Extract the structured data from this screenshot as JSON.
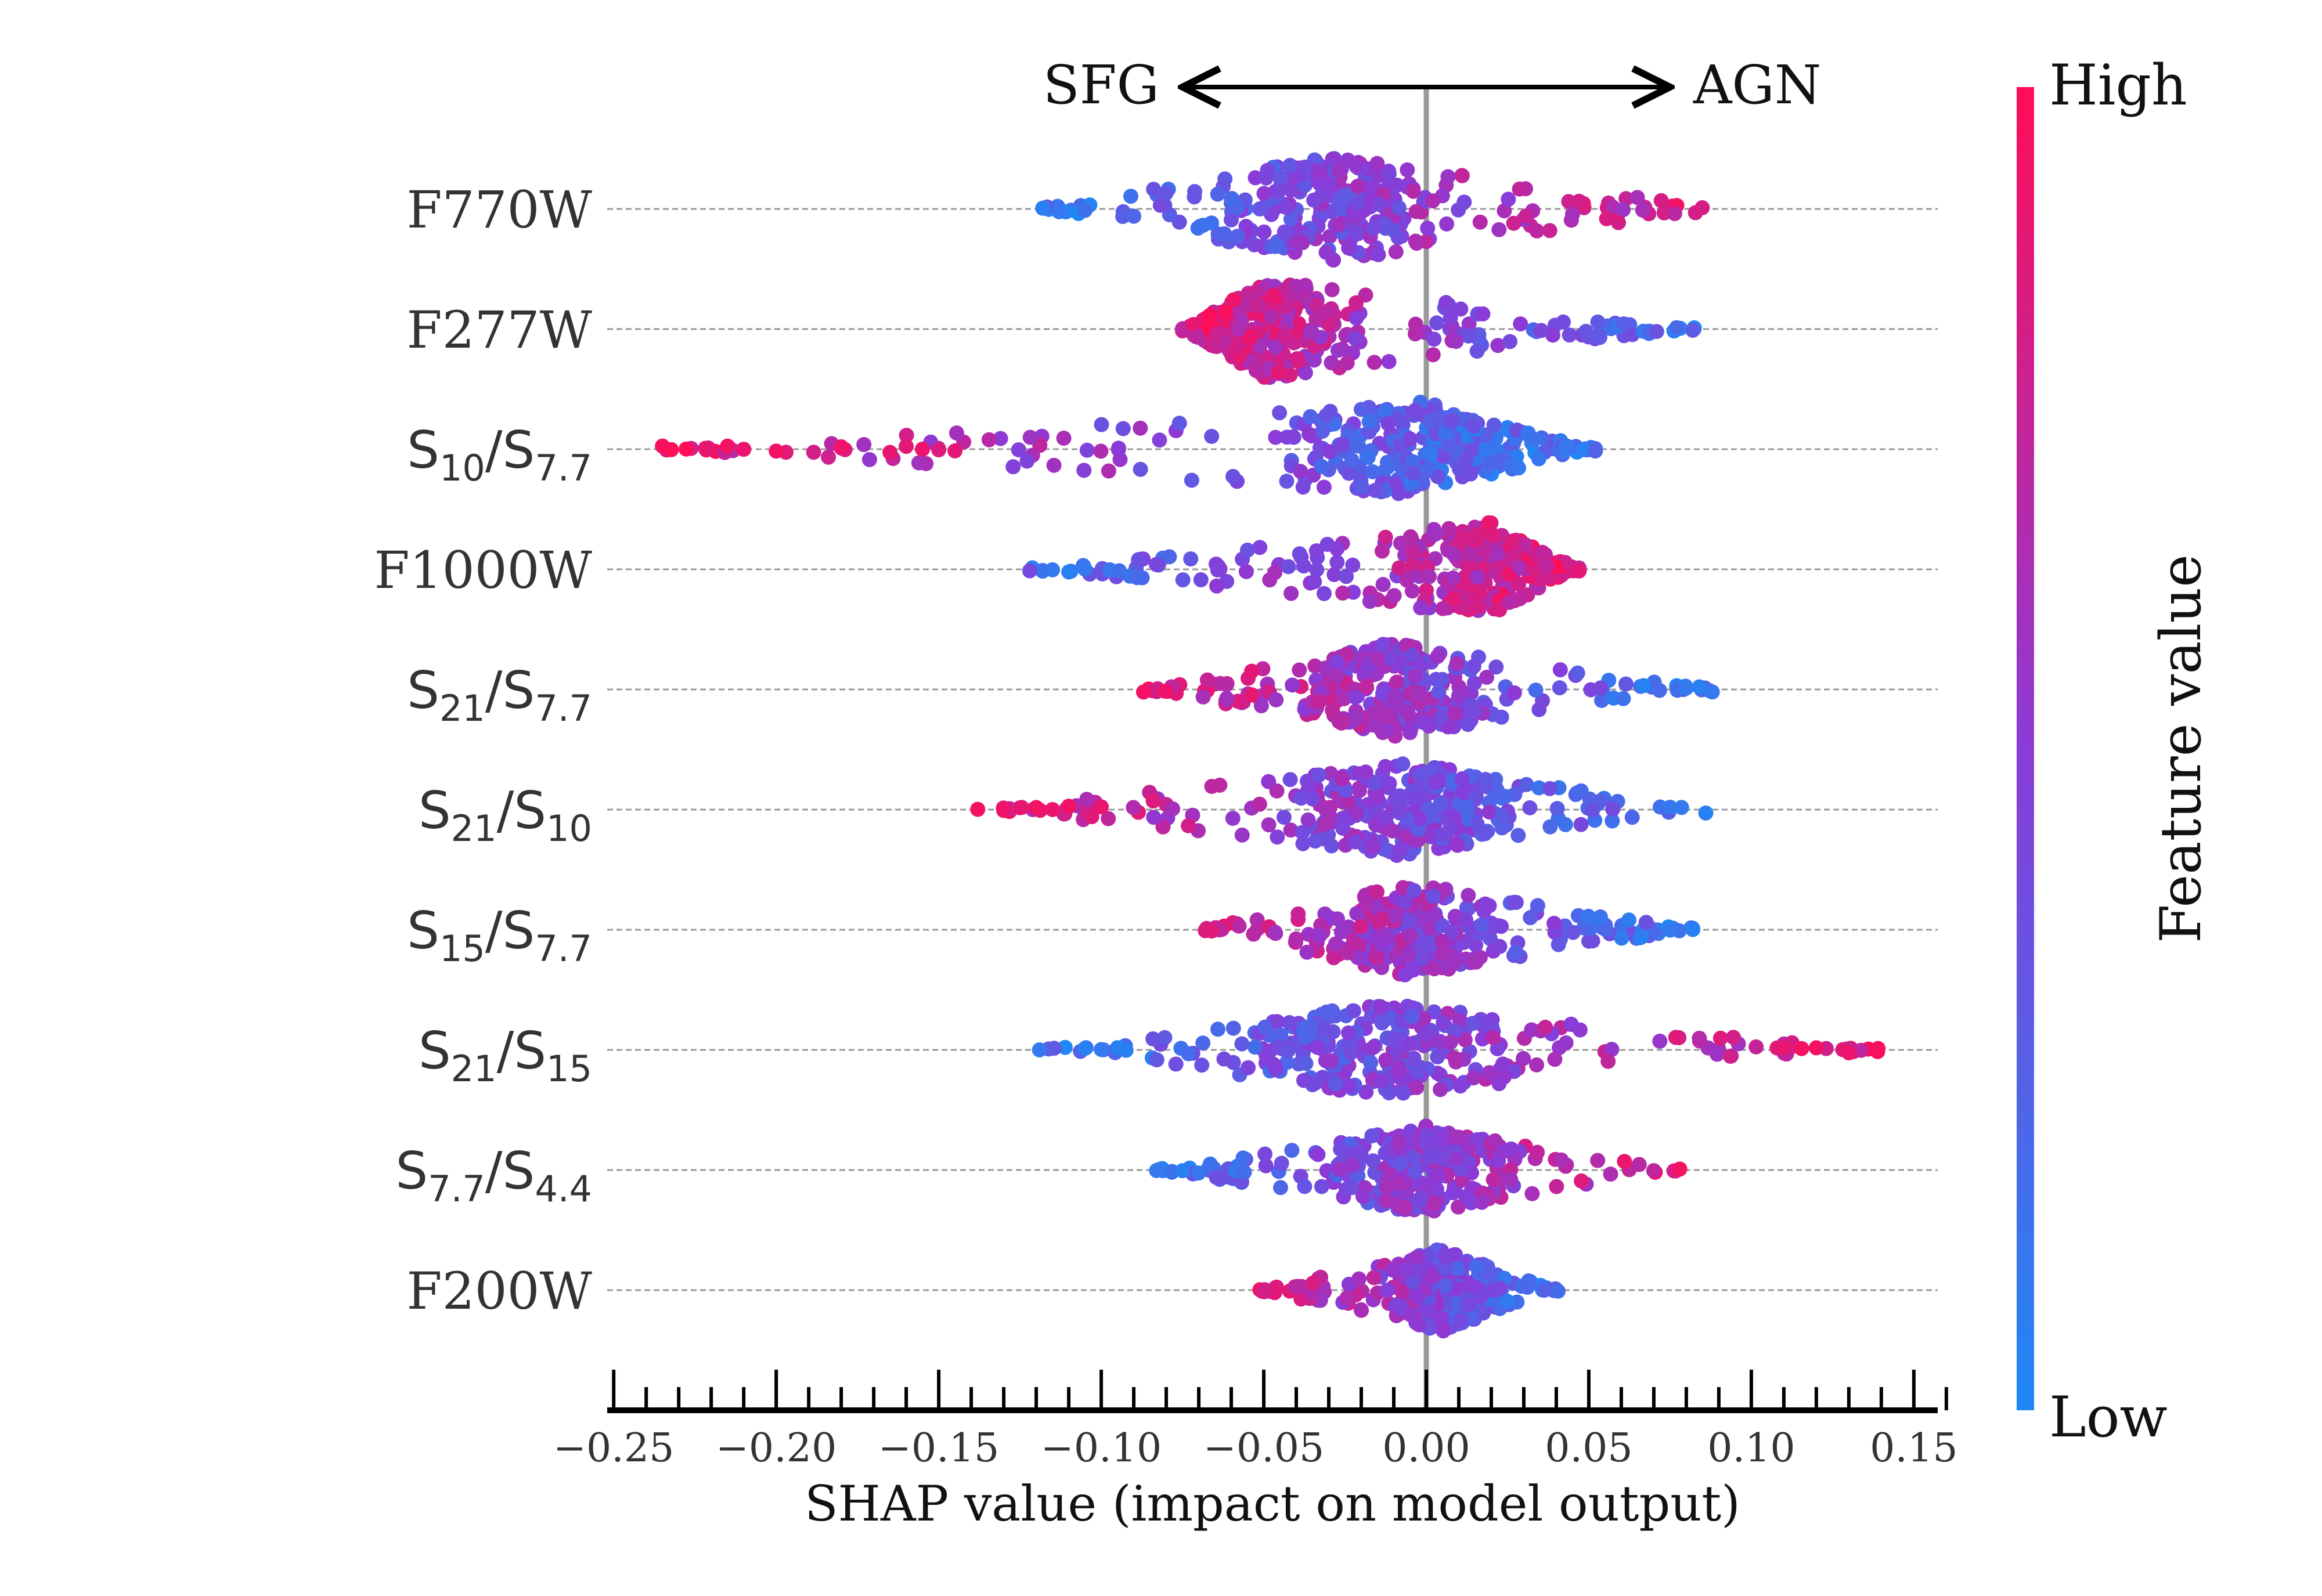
{
  "chart_data": {
    "type": "scatter",
    "subtype": "shap-beeswarm",
    "title": "",
    "xlabel": "SHAP value (impact on model output)",
    "ylabel": "",
    "xlim": [
      -0.252,
      0.16
    ],
    "xticks": [
      -0.25,
      -0.2,
      -0.15,
      -0.1,
      -0.05,
      0.0,
      0.05,
      0.1,
      0.15
    ],
    "xtick_labels": [
      "−0.25",
      "−0.20",
      "−0.15",
      "−0.10",
      "−0.05",
      "0.00",
      "0.05",
      "0.10",
      "0.15"
    ],
    "minor_tick_step": 0.01,
    "direction_arrow": {
      "left_label": "SFG",
      "right_label": "AGN",
      "from": -0.075,
      "to": 0.075
    },
    "colorbar": {
      "title": "Feature value",
      "high_label": "High",
      "low_label": "Low",
      "low_color": "#1e88f5",
      "high_color": "#ff0d57"
    },
    "colors": {
      "grid_line": "#999999",
      "zero_line": "#999999",
      "axis": "#000000"
    },
    "features": [
      {
        "name": "F770W",
        "base": "F770W",
        "sub1": "",
        "mid": "",
        "sub2": "",
        "range": [
          -0.12,
          0.095
        ],
        "peak_x": -0.03,
        "max_half_height": 0.45,
        "color_trend": 1,
        "outliers": [
          [
            -0.118,
            0.05
          ],
          [
            -0.113,
            0.1
          ],
          [
            -0.105,
            0.15
          ]
        ]
      },
      {
        "name": "F277W",
        "base": "F277W",
        "sub1": "",
        "mid": "",
        "sub2": "",
        "range": [
          -0.075,
          0.083
        ],
        "peak_x": -0.05,
        "max_half_height": 0.42,
        "color_trend": -1,
        "outliers": [
          [
            0.077,
            0.2
          ],
          [
            0.082,
            0.3
          ]
        ]
      },
      {
        "name": "S10/S7.7",
        "base": "",
        "sub1": "10",
        "mid": "/S",
        "sub2": "7.7",
        "range": [
          -0.235,
          0.052
        ],
        "peak_x": 0.0,
        "max_half_height": 0.4,
        "color_trend": -1,
        "outliers": [
          [
            -0.235,
            0.97
          ],
          [
            -0.215,
            0.95
          ],
          [
            -0.21,
            0.92
          ],
          [
            -0.2,
            0.95
          ],
          [
            -0.18,
            0.93
          ],
          [
            -0.165,
            0.9
          ],
          [
            -0.16,
            0.88
          ],
          [
            -0.155,
            0.92
          ],
          [
            -0.15,
            0.85
          ],
          [
            -0.145,
            0.88
          ]
        ]
      },
      {
        "name": "F1000W",
        "base": "F1000W",
        "sub1": "",
        "mid": "",
        "sub2": "",
        "range": [
          -0.123,
          0.047
        ],
        "peak_x": 0.02,
        "max_half_height": 0.4,
        "color_trend": 1,
        "outliers": [
          [
            -0.122,
            0.4
          ],
          [
            -0.115,
            0.1
          ],
          [
            -0.11,
            0.05
          ],
          [
            -0.105,
            0.1
          ]
        ]
      },
      {
        "name": "S21/S7.7",
        "base": "",
        "sub1": "21",
        "mid": "/S",
        "sub2": "7.7",
        "range": [
          -0.087,
          0.088
        ],
        "peak_x": -0.01,
        "max_half_height": 0.4,
        "color_trend": -1,
        "outliers": [
          [
            -0.087,
            0.95
          ],
          [
            0.08,
            0.1
          ],
          [
            0.084,
            0.05
          ],
          [
            0.088,
            0.1
          ]
        ]
      },
      {
        "name": "S21/S10",
        "base": "",
        "sub1": "21",
        "mid": "/S",
        "sub2": "10",
        "range": [
          -0.138,
          0.086
        ],
        "peak_x": -0.005,
        "max_half_height": 0.4,
        "color_trend": -1,
        "outliers": [
          [
            -0.138,
            0.95
          ],
          [
            -0.13,
            0.93
          ],
          [
            -0.125,
            0.9
          ],
          [
            -0.12,
            0.95
          ],
          [
            -0.115,
            0.92
          ],
          [
            -0.11,
            0.95
          ],
          [
            -0.1,
            0.9
          ],
          [
            0.075,
            0.1
          ],
          [
            0.086,
            0.05
          ]
        ]
      },
      {
        "name": "S15/S7.7",
        "base": "",
        "sub1": "15",
        "mid": "/S",
        "sub2": "7.7",
        "range": [
          -0.07,
          0.083
        ],
        "peak_x": -0.005,
        "max_half_height": 0.4,
        "color_trend": -1,
        "outliers": [
          [
            0.075,
            0.1
          ],
          [
            0.082,
            0.05
          ]
        ]
      },
      {
        "name": "S21/S15",
        "base": "",
        "sub1": "21",
        "mid": "/S",
        "sub2": "15",
        "range": [
          -0.119,
          0.139
        ],
        "peak_x": -0.015,
        "max_half_height": 0.4,
        "color_trend": 1,
        "outliers": [
          [
            -0.119,
            0.1
          ],
          [
            -0.105,
            0.05
          ],
          [
            -0.1,
            0.1
          ],
          [
            -0.095,
            0.05
          ],
          [
            0.11,
            0.9
          ],
          [
            0.12,
            0.95
          ],
          [
            0.13,
            0.92
          ],
          [
            0.139,
            0.97
          ]
        ]
      },
      {
        "name": "S7.7/S4.4",
        "base": "",
        "sub1": "7.7",
        "mid": "/S",
        "sub2": "4.4",
        "range": [
          -0.083,
          0.078
        ],
        "peak_x": 0.0,
        "max_half_height": 0.38,
        "color_trend": 1,
        "outliers": [
          [
            -0.083,
            0.1
          ],
          [
            -0.075,
            0.05
          ],
          [
            0.078,
            0.95
          ]
        ]
      },
      {
        "name": "F200W",
        "base": "F200W",
        "sub1": "",
        "mid": "",
        "sub2": "",
        "range": [
          -0.052,
          0.041
        ],
        "peak_x": 0.005,
        "max_half_height": 0.35,
        "color_trend": -1,
        "outliers": []
      }
    ]
  }
}
